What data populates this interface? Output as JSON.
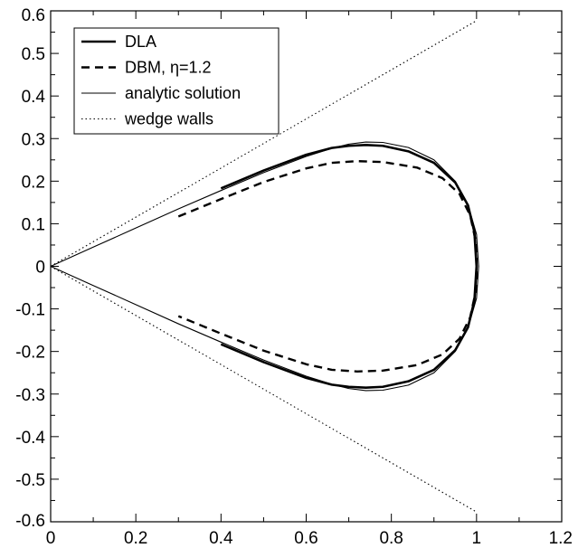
{
  "chart_data": {
    "type": "line",
    "title": "",
    "xlabel": "",
    "ylabel": "",
    "xlim": [
      0,
      1.2
    ],
    "ylim": [
      -0.6,
      0.6
    ],
    "grid": false,
    "legend_position": "top-left",
    "xticks": [
      0,
      0.2,
      0.4,
      0.6,
      0.8,
      1,
      1.2
    ],
    "xtick_labels": [
      "0",
      "0.2",
      "0.4",
      "0.6",
      "0.8",
      "1",
      "1.2"
    ],
    "yticks": [
      -0.6,
      -0.5,
      -0.4,
      -0.3,
      -0.2,
      -0.1,
      0,
      0.1,
      0.2,
      0.3,
      0.4,
      0.5,
      0.6
    ],
    "ytick_labels": [
      "-0.6",
      "-0.5",
      "-0.4",
      "-0.3",
      "-0.2",
      "-0.1",
      "0",
      "0.1",
      "0.2",
      "0.3",
      "0.4",
      "0.5",
      "0.6"
    ],
    "series": [
      {
        "name": "DLA",
        "style": "thick-solid",
        "color": "#000000",
        "segments": [
          [
            [
              0.4,
              0.183
            ],
            [
              0.5,
              0.225
            ],
            [
              0.6,
              0.262
            ],
            [
              0.66,
              0.278
            ],
            [
              0.7,
              0.283
            ],
            [
              0.74,
              0.285
            ],
            [
              0.78,
              0.283
            ],
            [
              0.84,
              0.27
            ],
            [
              0.9,
              0.243
            ],
            [
              0.95,
              0.197
            ],
            [
              0.98,
              0.143
            ],
            [
              0.995,
              0.08
            ],
            [
              1.0,
              0.0
            ],
            [
              0.995,
              -0.08
            ],
            [
              0.98,
              -0.143
            ],
            [
              0.95,
              -0.197
            ],
            [
              0.9,
              -0.243
            ],
            [
              0.84,
              -0.27
            ],
            [
              0.78,
              -0.283
            ],
            [
              0.74,
              -0.285
            ],
            [
              0.7,
              -0.283
            ],
            [
              0.66,
              -0.278
            ],
            [
              0.6,
              -0.262
            ],
            [
              0.5,
              -0.225
            ],
            [
              0.4,
              -0.183
            ]
          ]
        ]
      },
      {
        "name": "DBM, η=1.2",
        "style": "dashed",
        "color": "#000000",
        "segments": [
          [
            [
              0.3,
              0.117
            ],
            [
              0.4,
              0.158
            ],
            [
              0.5,
              0.198
            ],
            [
              0.6,
              0.23
            ],
            [
              0.66,
              0.243
            ],
            [
              0.72,
              0.247
            ],
            [
              0.78,
              0.245
            ],
            [
              0.86,
              0.232
            ],
            [
              0.92,
              0.207
            ],
            [
              0.96,
              0.17
            ],
            [
              0.985,
              0.12
            ],
            [
              1.0,
              0.05
            ],
            [
              1.0,
              -0.05
            ],
            [
              0.985,
              -0.12
            ],
            [
              0.96,
              -0.17
            ],
            [
              0.92,
              -0.207
            ],
            [
              0.86,
              -0.232
            ],
            [
              0.78,
              -0.245
            ],
            [
              0.72,
              -0.247
            ],
            [
              0.66,
              -0.243
            ],
            [
              0.6,
              -0.23
            ],
            [
              0.5,
              -0.198
            ],
            [
              0.4,
              -0.158
            ],
            [
              0.3,
              -0.117
            ]
          ]
        ]
      },
      {
        "name": "analytic solution",
        "style": "thin-solid",
        "color": "#000000",
        "segments": [
          [
            [
              0.0,
              0.0
            ],
            [
              0.1,
              0.045
            ],
            [
              0.2,
              0.09
            ],
            [
              0.3,
              0.135
            ],
            [
              0.4,
              0.178
            ],
            [
              0.5,
              0.22
            ],
            [
              0.6,
              0.258
            ],
            [
              0.66,
              0.277
            ],
            [
              0.7,
              0.287
            ],
            [
              0.74,
              0.292
            ],
            [
              0.78,
              0.291
            ],
            [
              0.84,
              0.279
            ],
            [
              0.9,
              0.25
            ],
            [
              0.95,
              0.2
            ],
            [
              0.98,
              0.145
            ],
            [
              1.0,
              0.075
            ],
            [
              1.005,
              0.0
            ],
            [
              1.0,
              -0.075
            ],
            [
              0.98,
              -0.145
            ],
            [
              0.95,
              -0.2
            ],
            [
              0.9,
              -0.25
            ],
            [
              0.84,
              -0.279
            ],
            [
              0.78,
              -0.291
            ],
            [
              0.74,
              -0.292
            ],
            [
              0.7,
              -0.287
            ],
            [
              0.66,
              -0.277
            ],
            [
              0.6,
              -0.258
            ],
            [
              0.5,
              -0.22
            ],
            [
              0.4,
              -0.178
            ],
            [
              0.3,
              -0.135
            ],
            [
              0.2,
              -0.09
            ],
            [
              0.1,
              -0.045
            ],
            [
              0.0,
              0.0
            ]
          ]
        ]
      },
      {
        "name": "wedge walls",
        "style": "dotted",
        "color": "#000000",
        "segments": [
          [
            [
              0.0,
              0.0
            ],
            [
              1.0,
              0.577
            ]
          ],
          [
            [
              0.0,
              0.0
            ],
            [
              1.0,
              -0.577
            ]
          ]
        ]
      }
    ]
  }
}
